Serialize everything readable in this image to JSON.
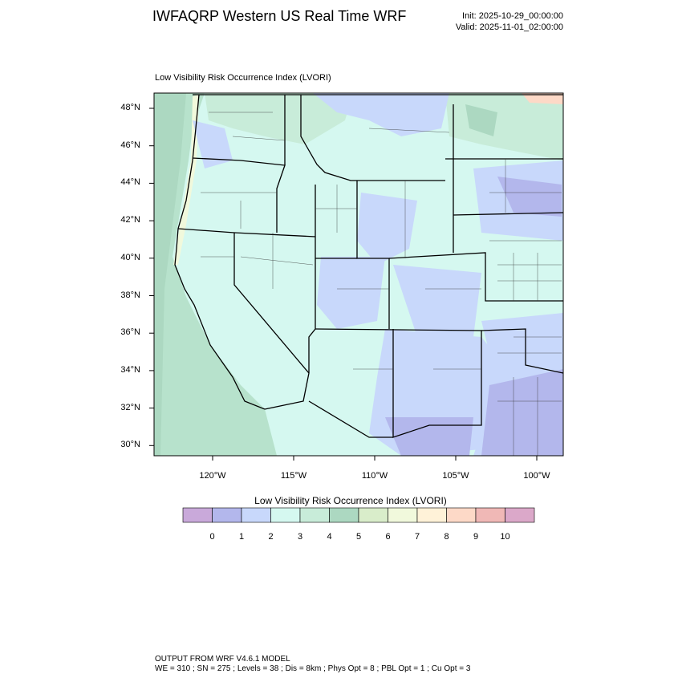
{
  "header": {
    "title": "IWFAQRP Western US Real Time WRF",
    "init": "Init: 2025-10-29_00:00:00",
    "valid": "Valid: 2025-11-01_02:00:00"
  },
  "map": {
    "subtitle": "Low Visibility Risk Occurrence Index   (LVORI)",
    "lat_labels": [
      "48°N",
      "46°N",
      "44°N",
      "42°N",
      "40°N",
      "38°N",
      "36°N",
      "34°N",
      "32°N",
      "30°N"
    ],
    "lon_labels": [
      "120°W",
      "115°W",
      "110°W",
      "105°W",
      "100°W"
    ]
  },
  "colorbar": {
    "title": "Low Visibility Risk Occurrence Index  (LVORI)",
    "labels": [
      "0",
      "1",
      "2",
      "3",
      "4",
      "5",
      "6",
      "7",
      "8",
      "9",
      "10"
    ],
    "colors": [
      "#c9a9da",
      "#b3b7ec",
      "#c8d8fb",
      "#d5f8f0",
      "#c8ecd9",
      "#acd8c1",
      "#d9edca",
      "#f1f9dc",
      "#fff2d8",
      "#fdd9c7",
      "#f0b8b6",
      "#dba8c9"
    ]
  },
  "footer": {
    "line1": "OUTPUT FROM WRF V4.6.1 MODEL",
    "line2": "WE = 310 ; SN = 275 ; Levels = 38 ; Dis = 8km ; Phys Opt = 8 ; PBL Opt = 1 ; Cu Opt = 3"
  }
}
